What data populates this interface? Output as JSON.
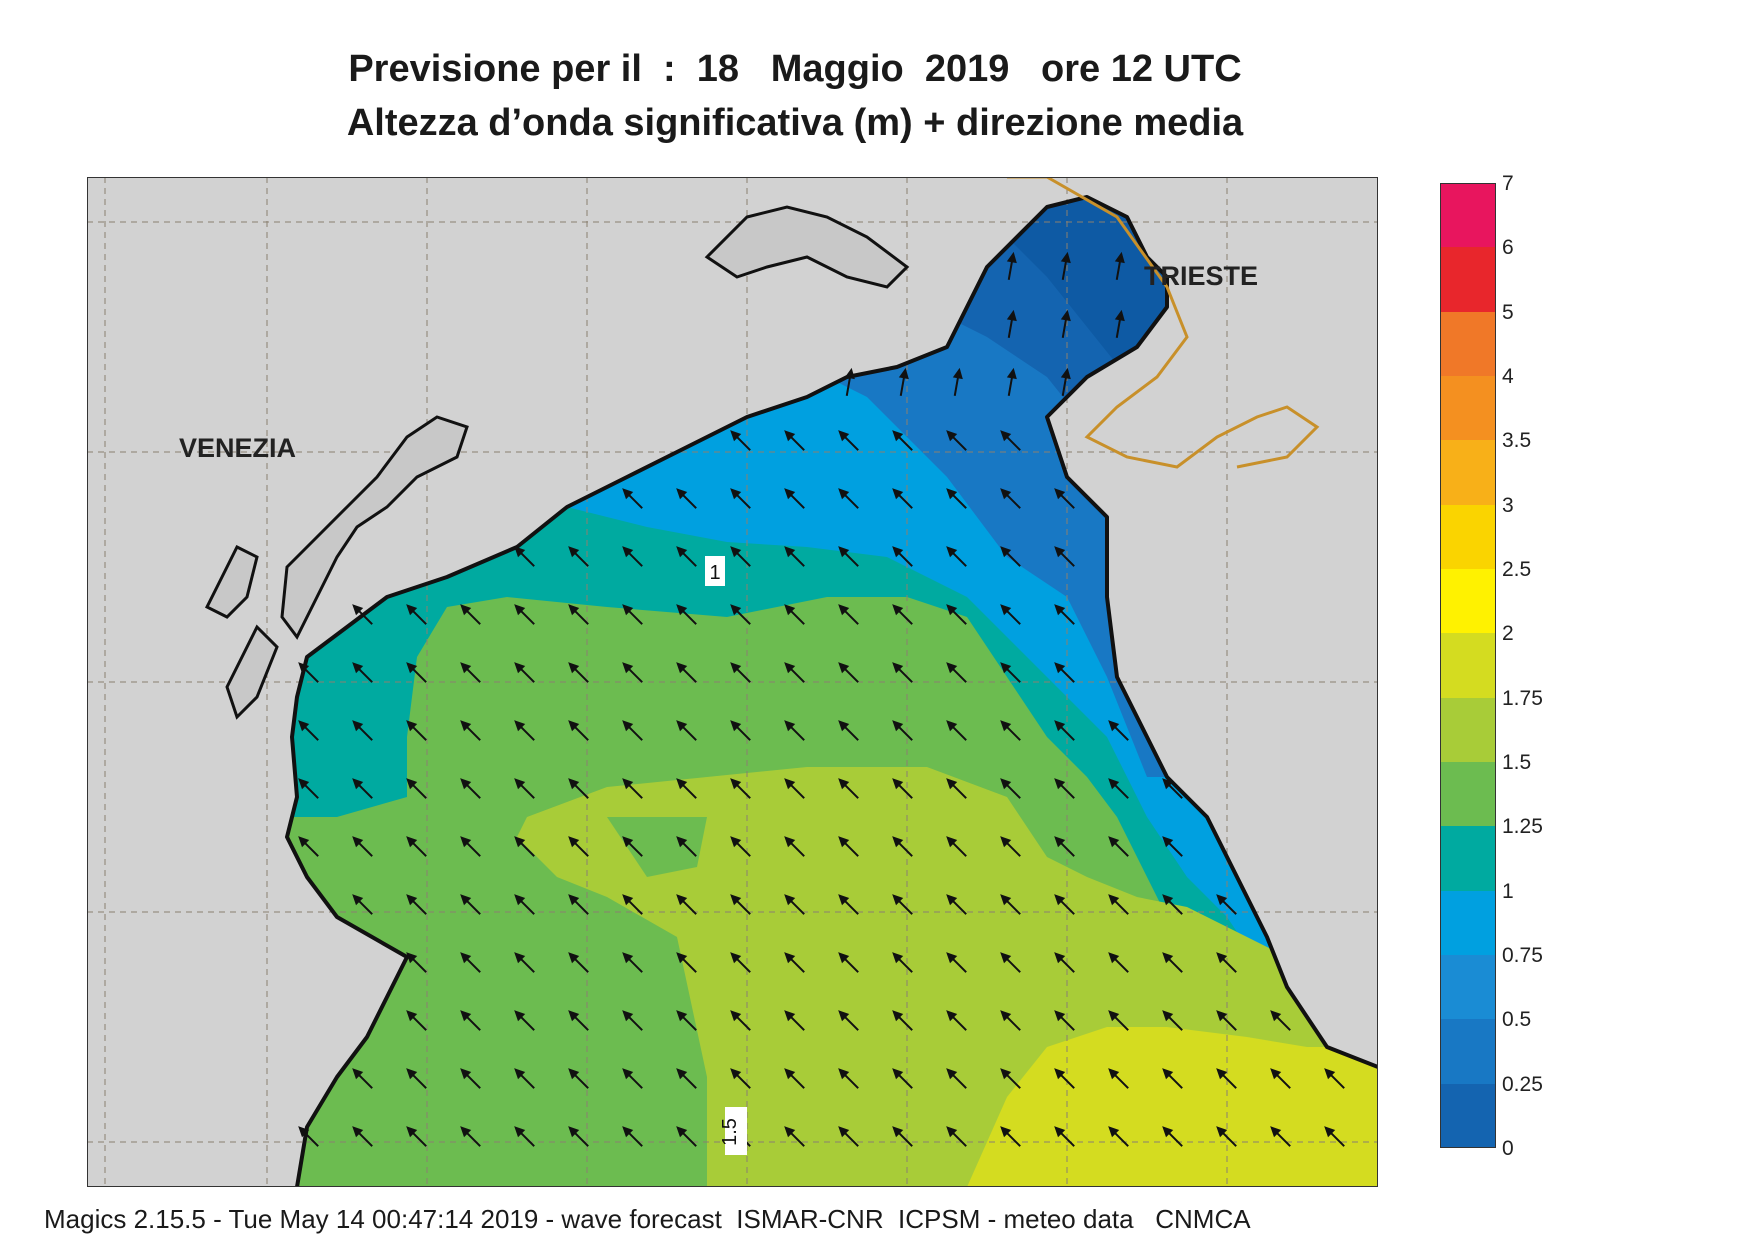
{
  "title": {
    "line1": "Previsione per il  :  18   Maggio  2019   ore 12 UTC",
    "line2": "Altezza d’onda significativa (m) + direzione media"
  },
  "map": {
    "places": {
      "venezia": "VENEZIA",
      "trieste": "TRIESTE"
    },
    "contour_labels": {
      "one": "1",
      "one_five": "1.5"
    },
    "land_color": "#d2d2d2",
    "grid_color": "#8a8070",
    "border_color": "#c8902a",
    "arrow_direction": "northwest"
  },
  "colorbar": {
    "ticks": [
      "7",
      "6",
      "5",
      "4",
      "3.5",
      "3",
      "2.5",
      "2",
      "1.75",
      "1.5",
      "1.25",
      "1",
      "0.75",
      "0.5",
      "0.25",
      "0"
    ],
    "colors": [
      "#e8155e",
      "#e8262c",
      "#f07828",
      "#f49020",
      "#f8b018",
      "#fad400",
      "#fff200",
      "#d4dc20",
      "#a8cc38",
      "#6cbc50",
      "#00aaa0",
      "#00a0e0",
      "#1a8cd4",
      "#1878c4",
      "#1464b0"
    ]
  },
  "footer": "Magics 2.15.5 - Tue May 14 00:47:14 2019 - wave forecast  ISMAR-CNR  ICPSM - meteo data   CNMCA"
}
